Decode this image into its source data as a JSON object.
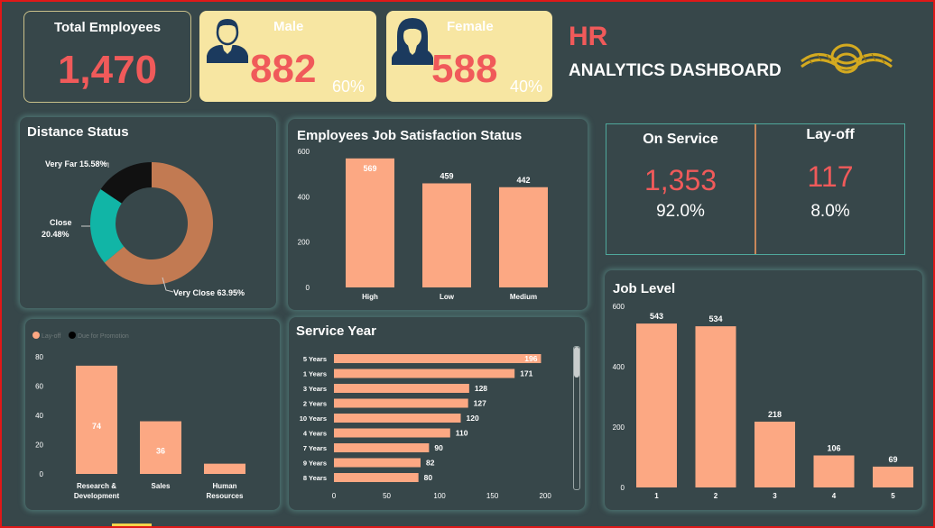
{
  "kpis": {
    "total": {
      "label": "Total Employees",
      "value": "1,470"
    },
    "male": {
      "label": "Male",
      "value": "882",
      "pct": "60%"
    },
    "female": {
      "label": "Female",
      "value": "588",
      "pct": "40%"
    }
  },
  "header": {
    "title": "HR",
    "subtitle": "ANALYTICS DASHBOARD",
    "logo": "rope-knot-logo"
  },
  "service_status": {
    "on_service": {
      "label": "On Service",
      "value": "1,353",
      "pct": "92.0%"
    },
    "layoff": {
      "label": "Lay-off",
      "value": "117",
      "pct": "8.0%"
    }
  },
  "colors": {
    "background": "#37474a",
    "accent": "#fca883",
    "red": "#f05a5a",
    "yellow": "#f7e6a2",
    "teal": "#11b5a6",
    "donut_brown": "#c27a52",
    "black": "#111111"
  },
  "chart_data": [
    {
      "id": "distance",
      "type": "pie",
      "title": "Distance Status",
      "slices": [
        {
          "label": "Very Close",
          "value": 63.95,
          "display": "Very Close 63.95%",
          "color": "#c27a52"
        },
        {
          "label": "Close",
          "value": 20.48,
          "display": "Close 20.48%",
          "color": "#11b5a6"
        },
        {
          "label": "Very Far",
          "value": 15.58,
          "display": "Very Far 15.58%",
          "color": "#111111"
        }
      ]
    },
    {
      "id": "satisfaction",
      "type": "bar",
      "title": "Employees Job Satisfaction Status",
      "categories": [
        "High",
        "Low",
        "Medium"
      ],
      "values": [
        569,
        459,
        442
      ],
      "yticks": [
        0,
        200,
        400,
        600
      ],
      "ylim": [
        0,
        600
      ]
    },
    {
      "id": "department",
      "type": "bar",
      "title": "",
      "legend": [
        "Lay-off",
        "Due for Promotion"
      ],
      "categories": [
        "Research & Development",
        "Sales",
        "Human Resources"
      ],
      "category_lines": [
        [
          "Research &",
          "Development"
        ],
        [
          "Sales"
        ],
        [
          "Human",
          "Resources"
        ]
      ],
      "values": [
        74,
        36,
        7
      ],
      "value_labels": [
        "74",
        "36",
        ""
      ],
      "yticks": [
        0,
        20,
        40,
        60,
        80
      ],
      "ylim": [
        0,
        85
      ]
    },
    {
      "id": "service_year",
      "type": "bar",
      "orientation": "horizontal",
      "title": "Service Year",
      "categories": [
        "5 Years",
        "1 Years",
        "3 Years",
        "2 Years",
        "10 Years",
        "4 Years",
        "7 Years",
        "9 Years",
        "8 Years"
      ],
      "values": [
        196,
        171,
        128,
        127,
        120,
        110,
        90,
        82,
        80
      ],
      "xticks": [
        0,
        50,
        100,
        150,
        200
      ],
      "xlim": [
        0,
        205
      ]
    },
    {
      "id": "job_level",
      "type": "bar",
      "title": "Job Level",
      "categories": [
        "1",
        "2",
        "3",
        "4",
        "5"
      ],
      "values": [
        543,
        534,
        218,
        106,
        69
      ],
      "yticks": [
        0,
        200,
        400,
        600
      ],
      "ylim": [
        0,
        600
      ]
    }
  ]
}
